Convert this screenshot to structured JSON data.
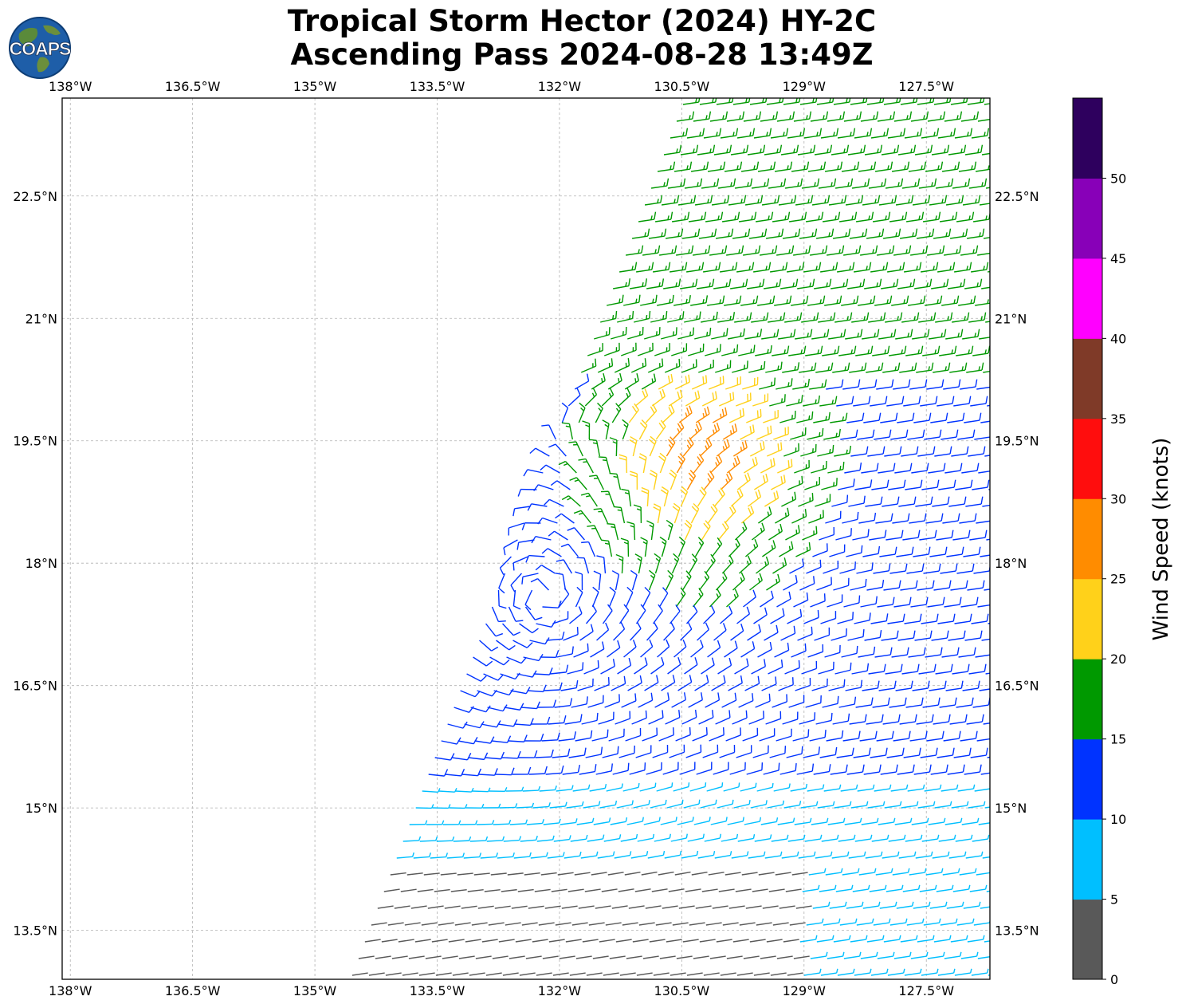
{
  "title": {
    "line1": "Tropical Storm Hector (2024) HY-2C",
    "line2": "Ascending Pass 2024-08-28 13:49Z"
  },
  "logo": {
    "text": "COAPS",
    "icon": "globe-logo-icon"
  },
  "map": {
    "lon_labels": [
      "138°W",
      "136.5°W",
      "135°W",
      "133.5°W",
      "132°W",
      "130.5°W",
      "129°W",
      "127.5°W"
    ],
    "lon_values": [
      -138,
      -136.5,
      -135,
      -133.5,
      -132,
      -130.5,
      -129,
      -127.5
    ],
    "lat_labels": [
      "22.5°N",
      "21°N",
      "19.5°N",
      "18°N",
      "16.5°N",
      "15°N",
      "13.5°N"
    ],
    "lat_values": [
      22.5,
      21,
      19.5,
      18,
      16.5,
      15,
      13.5
    ],
    "lon_range": [
      -138.1,
      -126.72
    ],
    "lat_range": [
      12.9,
      23.7
    ],
    "gridlines": true,
    "projection": "PlateCarree",
    "storm_center_approx": {
      "lon": -132.2,
      "lat": 17.6
    },
    "barb_field": "wind barbs colored by speed (knots)"
  },
  "colorbar": {
    "label": "Wind Speed (knots)",
    "tick_labels": [
      "0",
      "5",
      "10",
      "15",
      "20",
      "25",
      "30",
      "35",
      "40",
      "45",
      "50"
    ],
    "bins": [
      {
        "min": 0,
        "max": 5,
        "color": "#595959"
      },
      {
        "min": 5,
        "max": 10,
        "color": "#00bfff"
      },
      {
        "min": 10,
        "max": 15,
        "color": "#0033ff"
      },
      {
        "min": 15,
        "max": 20,
        "color": "#009900"
      },
      {
        "min": 20,
        "max": 25,
        "color": "#ffd11a"
      },
      {
        "min": 25,
        "max": 30,
        "color": "#ff8c00"
      },
      {
        "min": 30,
        "max": 35,
        "color": "#ff0d0d"
      },
      {
        "min": 35,
        "max": 40,
        "color": "#7f3a28"
      },
      {
        "min": 40,
        "max": 45,
        "color": "#ff00ff"
      },
      {
        "min": 45,
        "max": 50,
        "color": "#8800b8"
      },
      {
        "min": 50,
        "max": 55,
        "color": "#2e005e"
      }
    ]
  }
}
